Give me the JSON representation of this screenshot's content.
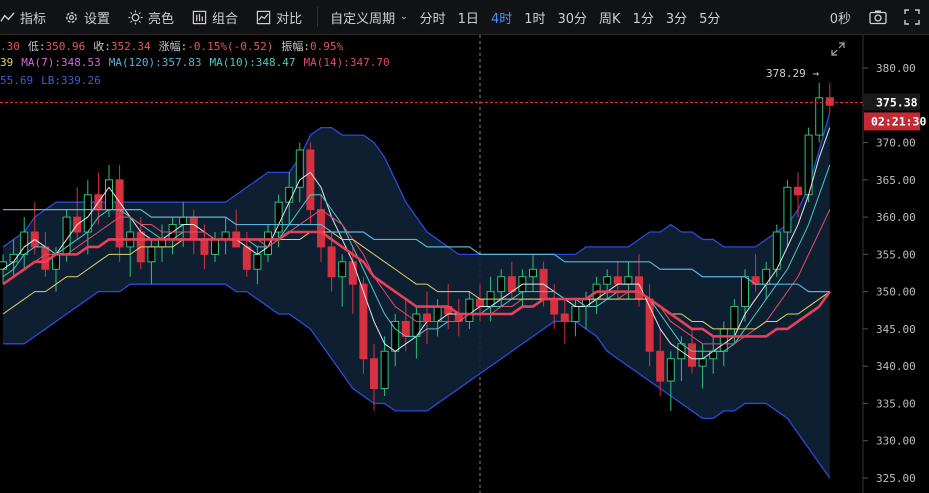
{
  "toolbar": {
    "indicators": "指标",
    "settings": "设置",
    "brightness": "亮色",
    "combo": "组合",
    "compare": "对比",
    "custom_period": "自定义周期",
    "periods": [
      "分时",
      "1日",
      "4时",
      "1时",
      "30分",
      "周K",
      "1分",
      "3分",
      "5分"
    ],
    "active_period": "4时",
    "seconds": "0秒"
  },
  "info_row1": {
    "prefix": ".30",
    "low_label": "低:",
    "low": "350.96",
    "close_label": "收:",
    "close": "352.34",
    "change_label": "涨幅:",
    "change": "-0.15%(-0.52)",
    "amp_label": "振幅:",
    "amp": "0.95%"
  },
  "info_row2": {
    "prefix": "39",
    "ma7": "MA(7):348.53",
    "ma120": "MA(120):357.83",
    "ma10": "MA(10):348.47",
    "ma14": "MA(14):347.70"
  },
  "info_row3": {
    "ub": "55.69",
    "lb": "LB:339.26"
  },
  "price_tag": "375.38",
  "countdown": "02:21:30",
  "high_marker": "378.29 →",
  "colors": {
    "up": "#2fc07a",
    "down": "#d6313f",
    "ma7": "#e8e8e8",
    "ma10": "#4fc9c0",
    "ma14": "#e04c6c",
    "ma120": "#5ab4d6",
    "ma30": "#d9d46a",
    "thick": "#e8405a",
    "boll": "#2f49d6",
    "boll_fill": "#0f2236"
  },
  "chart_data": {
    "type": "candlestick",
    "ylim": [
      325,
      382
    ],
    "yticks": [
      "325.00",
      "330.00",
      "335.00",
      "340.00",
      "345.00",
      "350.00",
      "355.00",
      "360.00",
      "365.00",
      "370.00",
      "375.00",
      "380.00"
    ],
    "candles": [
      [
        353,
        355,
        351,
        354
      ],
      [
        354,
        357,
        352,
        355
      ],
      [
        355,
        360,
        353,
        358
      ],
      [
        358,
        362,
        355,
        356
      ],
      [
        356,
        358,
        352,
        353
      ],
      [
        353,
        356,
        350,
        355
      ],
      [
        355,
        361,
        354,
        360
      ],
      [
        360,
        364,
        357,
        358
      ],
      [
        358,
        365,
        355,
        363
      ],
      [
        363,
        366,
        359,
        361
      ],
      [
        361,
        367,
        360,
        365
      ],
      [
        365,
        367,
        354,
        356
      ],
      [
        356,
        360,
        352,
        358
      ],
      [
        358,
        360,
        353,
        354
      ],
      [
        354,
        357,
        351,
        356
      ],
      [
        356,
        359,
        354,
        357
      ],
      [
        357,
        360,
        355,
        359
      ],
      [
        359,
        362,
        356,
        360
      ],
      [
        360,
        361,
        355,
        357
      ],
      [
        357,
        359,
        353,
        355
      ],
      [
        355,
        358,
        354,
        357
      ],
      [
        357,
        360,
        355,
        358
      ],
      [
        358,
        361,
        356,
        356
      ],
      [
        356,
        358,
        352,
        353
      ],
      [
        353,
        356,
        351,
        355
      ],
      [
        355,
        359,
        354,
        358
      ],
      [
        358,
        363,
        356,
        362
      ],
      [
        362,
        366,
        359,
        364
      ],
      [
        364,
        370,
        362,
        369
      ],
      [
        369,
        370,
        359,
        361
      ],
      [
        361,
        363,
        354,
        356
      ],
      [
        356,
        358,
        350,
        352
      ],
      [
        352,
        355,
        348,
        354
      ],
      [
        354,
        356,
        347,
        351
      ],
      [
        351,
        352,
        339,
        341
      ],
      [
        341,
        343,
        334,
        337
      ],
      [
        337,
        344,
        336,
        342
      ],
      [
        342,
        347,
        340,
        346
      ],
      [
        346,
        349,
        342,
        344
      ],
      [
        344,
        348,
        341,
        347
      ],
      [
        347,
        350,
        343,
        346
      ],
      [
        346,
        349,
        344,
        348
      ],
      [
        348,
        351,
        345,
        347
      ],
      [
        347,
        349,
        344,
        346
      ],
      [
        346,
        350,
        345,
        349
      ],
      [
        349,
        351,
        346,
        348
      ],
      [
        348,
        352,
        346,
        350
      ],
      [
        350,
        353,
        348,
        352
      ],
      [
        352,
        354,
        349,
        350
      ],
      [
        350,
        353,
        348,
        352
      ],
      [
        352,
        355,
        350,
        353
      ],
      [
        353,
        354,
        348,
        349
      ],
      [
        349,
        351,
        345,
        347
      ],
      [
        347,
        349,
        343,
        346
      ],
      [
        346,
        349,
        344,
        348
      ],
      [
        348,
        350,
        345,
        349
      ],
      [
        349,
        352,
        347,
        351
      ],
      [
        351,
        353,
        349,
        352
      ],
      [
        352,
        354,
        349,
        351
      ],
      [
        351,
        354,
        349,
        352
      ],
      [
        352,
        355,
        348,
        349
      ],
      [
        349,
        351,
        340,
        342
      ],
      [
        342,
        345,
        336,
        338
      ],
      [
        338,
        342,
        334,
        341
      ],
      [
        341,
        344,
        338,
        343
      ],
      [
        343,
        345,
        339,
        340
      ],
      [
        340,
        343,
        337,
        341
      ],
      [
        341,
        344,
        339,
        342
      ],
      [
        342,
        346,
        340,
        345
      ],
      [
        345,
        349,
        343,
        348
      ],
      [
        348,
        353,
        346,
        352
      ],
      [
        352,
        355,
        350,
        351
      ],
      [
        351,
        354,
        349,
        353
      ],
      [
        353,
        359,
        352,
        358
      ],
      [
        358,
        365,
        356,
        364
      ],
      [
        364,
        366,
        360,
        363
      ],
      [
        363,
        372,
        362,
        371
      ],
      [
        371,
        378,
        370,
        376
      ],
      [
        376,
        378,
        374,
        375
      ]
    ],
    "series": [
      {
        "key": "ma7",
        "values": [
          353,
          354,
          356,
          357,
          356,
          355,
          357,
          359,
          360,
          362,
          364,
          362,
          360,
          358,
          357,
          357,
          358,
          359,
          359,
          358,
          357,
          357,
          357,
          356,
          355,
          356,
          359,
          362,
          365,
          366,
          364,
          360,
          357,
          354,
          350,
          346,
          343,
          342,
          343,
          344,
          346,
          346,
          347,
          347,
          347,
          348,
          348,
          349,
          350,
          351,
          351,
          351,
          350,
          349,
          348,
          348,
          349,
          350,
          351,
          351,
          351,
          348,
          345,
          343,
          342,
          341,
          341,
          342,
          343,
          344,
          347,
          349,
          351,
          353,
          356,
          359,
          363,
          368,
          372
        ]
      },
      {
        "key": "ma10",
        "values": [
          352,
          353,
          355,
          356,
          356,
          355,
          356,
          357,
          358,
          360,
          361,
          361,
          360,
          359,
          358,
          357,
          357,
          358,
          358,
          358,
          357,
          357,
          357,
          357,
          356,
          356,
          357,
          359,
          361,
          363,
          363,
          361,
          359,
          356,
          353,
          350,
          347,
          345,
          344,
          344,
          345,
          345,
          346,
          346,
          347,
          347,
          348,
          348,
          349,
          350,
          350,
          350,
          350,
          349,
          349,
          348,
          348,
          349,
          350,
          350,
          350,
          349,
          347,
          345,
          343,
          342,
          342,
          342,
          342,
          343,
          345,
          347,
          349,
          351,
          353,
          356,
          359,
          363,
          367
        ]
      },
      {
        "key": "ma14",
        "values": [
          351,
          352,
          353,
          354,
          355,
          355,
          355,
          356,
          357,
          358,
          359,
          360,
          360,
          359,
          359,
          358,
          358,
          358,
          358,
          358,
          357,
          357,
          357,
          357,
          357,
          356,
          357,
          358,
          359,
          360,
          361,
          360,
          359,
          357,
          355,
          352,
          350,
          348,
          347,
          346,
          346,
          346,
          346,
          346,
          347,
          347,
          347,
          348,
          348,
          349,
          349,
          349,
          349,
          349,
          349,
          349,
          349,
          349,
          349,
          350,
          350,
          349,
          348,
          346,
          345,
          344,
          343,
          343,
          343,
          343,
          344,
          345,
          346,
          348,
          350,
          352,
          355,
          358,
          361
        ]
      },
      {
        "key": "ma30",
        "values": [
          347,
          348,
          349,
          350,
          350,
          351,
          352,
          352,
          353,
          354,
          355,
          355,
          355,
          356,
          356,
          356,
          356,
          357,
          357,
          357,
          357,
          357,
          357,
          357,
          357,
          357,
          357,
          357,
          357,
          358,
          358,
          358,
          357,
          357,
          356,
          355,
          354,
          353,
          352,
          351,
          351,
          350,
          350,
          350,
          350,
          349,
          349,
          349,
          349,
          349,
          349,
          349,
          349,
          349,
          349,
          349,
          349,
          349,
          349,
          349,
          349,
          349,
          348,
          347,
          347,
          346,
          346,
          345,
          345,
          345,
          345,
          345,
          346,
          346,
          347,
          347,
          348,
          349,
          350
        ]
      },
      {
        "key": "thick",
        "values": [
          351,
          352,
          353,
          354,
          354,
          355,
          355,
          355,
          356,
          356,
          357,
          357,
          357,
          357,
          357,
          357,
          357,
          357,
          357,
          357,
          357,
          357,
          357,
          357,
          357,
          357,
          357,
          358,
          358,
          358,
          358,
          357,
          356,
          355,
          354,
          352,
          351,
          350,
          349,
          348,
          348,
          348,
          348,
          347,
          347,
          347,
          347,
          347,
          347,
          348,
          348,
          349,
          349,
          349,
          349,
          349,
          350,
          350,
          350,
          350,
          350,
          349,
          348,
          347,
          346,
          345,
          345,
          344,
          344,
          344,
          344,
          344,
          344,
          345,
          345,
          346,
          347,
          348,
          350
        ]
      },
      {
        "key": "ma120",
        "values": [
          361,
          361,
          361,
          361,
          361,
          361,
          361,
          361,
          361,
          361,
          361,
          361,
          361,
          361,
          360,
          360,
          360,
          360,
          360,
          360,
          360,
          360,
          359,
          359,
          359,
          359,
          359,
          359,
          359,
          359,
          359,
          358,
          358,
          358,
          358,
          357,
          357,
          357,
          357,
          357,
          356,
          356,
          356,
          356,
          356,
          355,
          355,
          355,
          355,
          355,
          355,
          355,
          355,
          354,
          354,
          354,
          354,
          354,
          354,
          354,
          354,
          354,
          353,
          353,
          353,
          353,
          352,
          352,
          352,
          352,
          352,
          351,
          351,
          351,
          351,
          351,
          350,
          350,
          350
        ]
      },
      {
        "key": "boll_up",
        "values": [
          356,
          357,
          358,
          360,
          361,
          362,
          362,
          362,
          362,
          362,
          362,
          362,
          362,
          362,
          362,
          362,
          362,
          362,
          362,
          362,
          362,
          362,
          363,
          364,
          365,
          366,
          366,
          366,
          368,
          371,
          372,
          372,
          371,
          371,
          371,
          370,
          368,
          365,
          362,
          360,
          358,
          357,
          356,
          355,
          355,
          355,
          355,
          355,
          355,
          355,
          355,
          355,
          355,
          355,
          355,
          356,
          356,
          356,
          356,
          356,
          357,
          358,
          358,
          359,
          358,
          358,
          357,
          357,
          356,
          356,
          356,
          356,
          357,
          358,
          359,
          361,
          364,
          369,
          374
        ]
      },
      {
        "key": "boll_dn",
        "values": [
          343,
          343,
          343,
          344,
          345,
          346,
          347,
          348,
          349,
          350,
          350,
          350,
          351,
          351,
          351,
          351,
          351,
          351,
          351,
          351,
          351,
          351,
          350,
          350,
          349,
          348,
          347,
          347,
          346,
          345,
          343,
          341,
          339,
          337,
          336,
          335,
          335,
          334,
          334,
          334,
          334,
          335,
          336,
          337,
          338,
          339,
          340,
          341,
          342,
          343,
          344,
          345,
          346,
          346,
          346,
          345,
          344,
          342,
          341,
          340,
          339,
          338,
          337,
          336,
          335,
          334,
          333,
          333,
          334,
          334,
          335,
          335,
          335,
          334,
          333,
          331,
          329,
          327,
          325
        ]
      }
    ]
  }
}
